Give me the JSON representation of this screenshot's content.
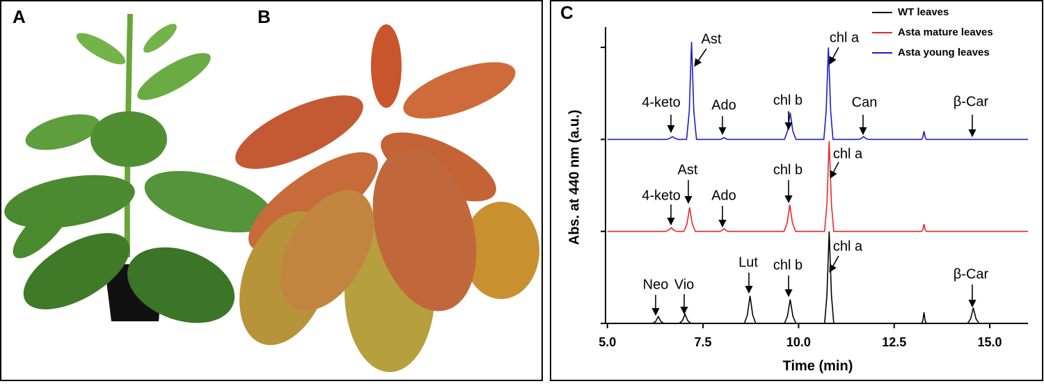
{
  "chart_data": {
    "type": "line",
    "panel_labels": [
      "A",
      "B",
      "C"
    ],
    "xlabel": "Time (min)",
    "ylabel": "Abs. at 440 nm (a.u.)",
    "xlim": [
      4.95,
      16.0
    ],
    "xticks": [
      {
        "value": 5,
        "label": "5.0"
      },
      {
        "value": 7.5,
        "label": "7.5"
      },
      {
        "value": 10,
        "label": "10.0"
      },
      {
        "value": 12.5,
        "label": "12.5"
      },
      {
        "value": 15,
        "label": "15.0"
      }
    ],
    "ylim": [
      0,
      3.22
    ],
    "yticks": [
      0,
      1,
      2,
      3
    ],
    "legend": "top-right",
    "series": [
      {
        "name": "WT leaves",
        "color": "#000000",
        "x": [
          5.0,
          6.18,
          6.26,
          6.33,
          6.4,
          6.48,
          6.88,
          6.96,
          7.03,
          7.1,
          7.18,
          8.58,
          8.66,
          8.73,
          8.8,
          8.88,
          9.63,
          9.71,
          9.78,
          9.85,
          9.93,
          10.68,
          10.74,
          10.8,
          10.86,
          10.92,
          13.22,
          13.25,
          13.28,
          13.31,
          13.34,
          14.42,
          14.5,
          14.57,
          14.64,
          14.72,
          16.0
        ],
        "values": [
          0,
          0,
          0.02,
          0.075,
          0.02,
          0,
          0,
          0.03,
          0.1,
          0.03,
          0,
          0,
          0.09,
          0.3,
          0.09,
          0,
          0,
          0.08,
          0.26,
          0.08,
          0,
          0,
          0.3,
          1.0,
          0.3,
          0,
          0,
          0.03,
          0.12,
          0.03,
          0,
          0,
          0.05,
          0.17,
          0.05,
          0,
          0
        ]
      },
      {
        "name": "Asta mature leaves",
        "color": "#e8262a",
        "x": [
          5.0,
          6.52,
          6.6,
          6.67,
          6.74,
          6.82,
          7.0,
          7.08,
          7.15,
          7.22,
          7.3,
          7.95,
          8.0,
          8.05,
          8.1,
          8.15,
          9.62,
          9.7,
          9.77,
          9.84,
          9.92,
          10.68,
          10.74,
          10.8,
          10.86,
          10.92,
          13.22,
          13.25,
          13.28,
          13.31,
          13.34,
          16.0
        ],
        "values": [
          1,
          1,
          1.012,
          1.04,
          1.012,
          1,
          1,
          1.08,
          1.26,
          1.08,
          1,
          1,
          1.01,
          1.03,
          1.01,
          1,
          1,
          1.09,
          1.29,
          1.09,
          1,
          1,
          1.29,
          1.98,
          1.29,
          1,
          1,
          1.02,
          1.08,
          1.02,
          1,
          1
        ]
      },
      {
        "name": "Asta young leaves",
        "color": "#1a1acc",
        "x": [
          5.0,
          6.55,
          6.63,
          6.7,
          6.77,
          6.85,
          7.07,
          7.14,
          7.2,
          7.26,
          7.33,
          7.95,
          8.0,
          8.05,
          8.1,
          8.15,
          9.63,
          9.71,
          9.78,
          9.85,
          9.93,
          10.66,
          10.72,
          10.78,
          10.84,
          10.9,
          11.58,
          11.64,
          11.7,
          11.76,
          11.82,
          13.22,
          13.25,
          13.28,
          13.31,
          13.34,
          16.0
        ],
        "values": [
          2,
          2,
          2.01,
          2.03,
          2.01,
          2,
          2,
          2.3,
          3.06,
          2.3,
          2,
          2,
          2.006,
          2.02,
          2.006,
          2,
          2,
          2.09,
          2.29,
          2.09,
          2,
          2,
          2.3,
          3.0,
          2.3,
          2,
          2,
          2.01,
          2.03,
          2.01,
          2,
          2,
          2.025,
          2.09,
          2.025,
          2,
          2
        ]
      }
    ],
    "annotations": [
      "Ast",
      "4-keto",
      "Ado",
      "chl b",
      "chl a",
      "Can",
      "β-Car",
      "4-keto",
      "Ast",
      "Ado",
      "chl b",
      "chl a",
      "Neo",
      "Vio",
      "Lut",
      "chl b",
      "chl a",
      "β-Car"
    ]
  }
}
